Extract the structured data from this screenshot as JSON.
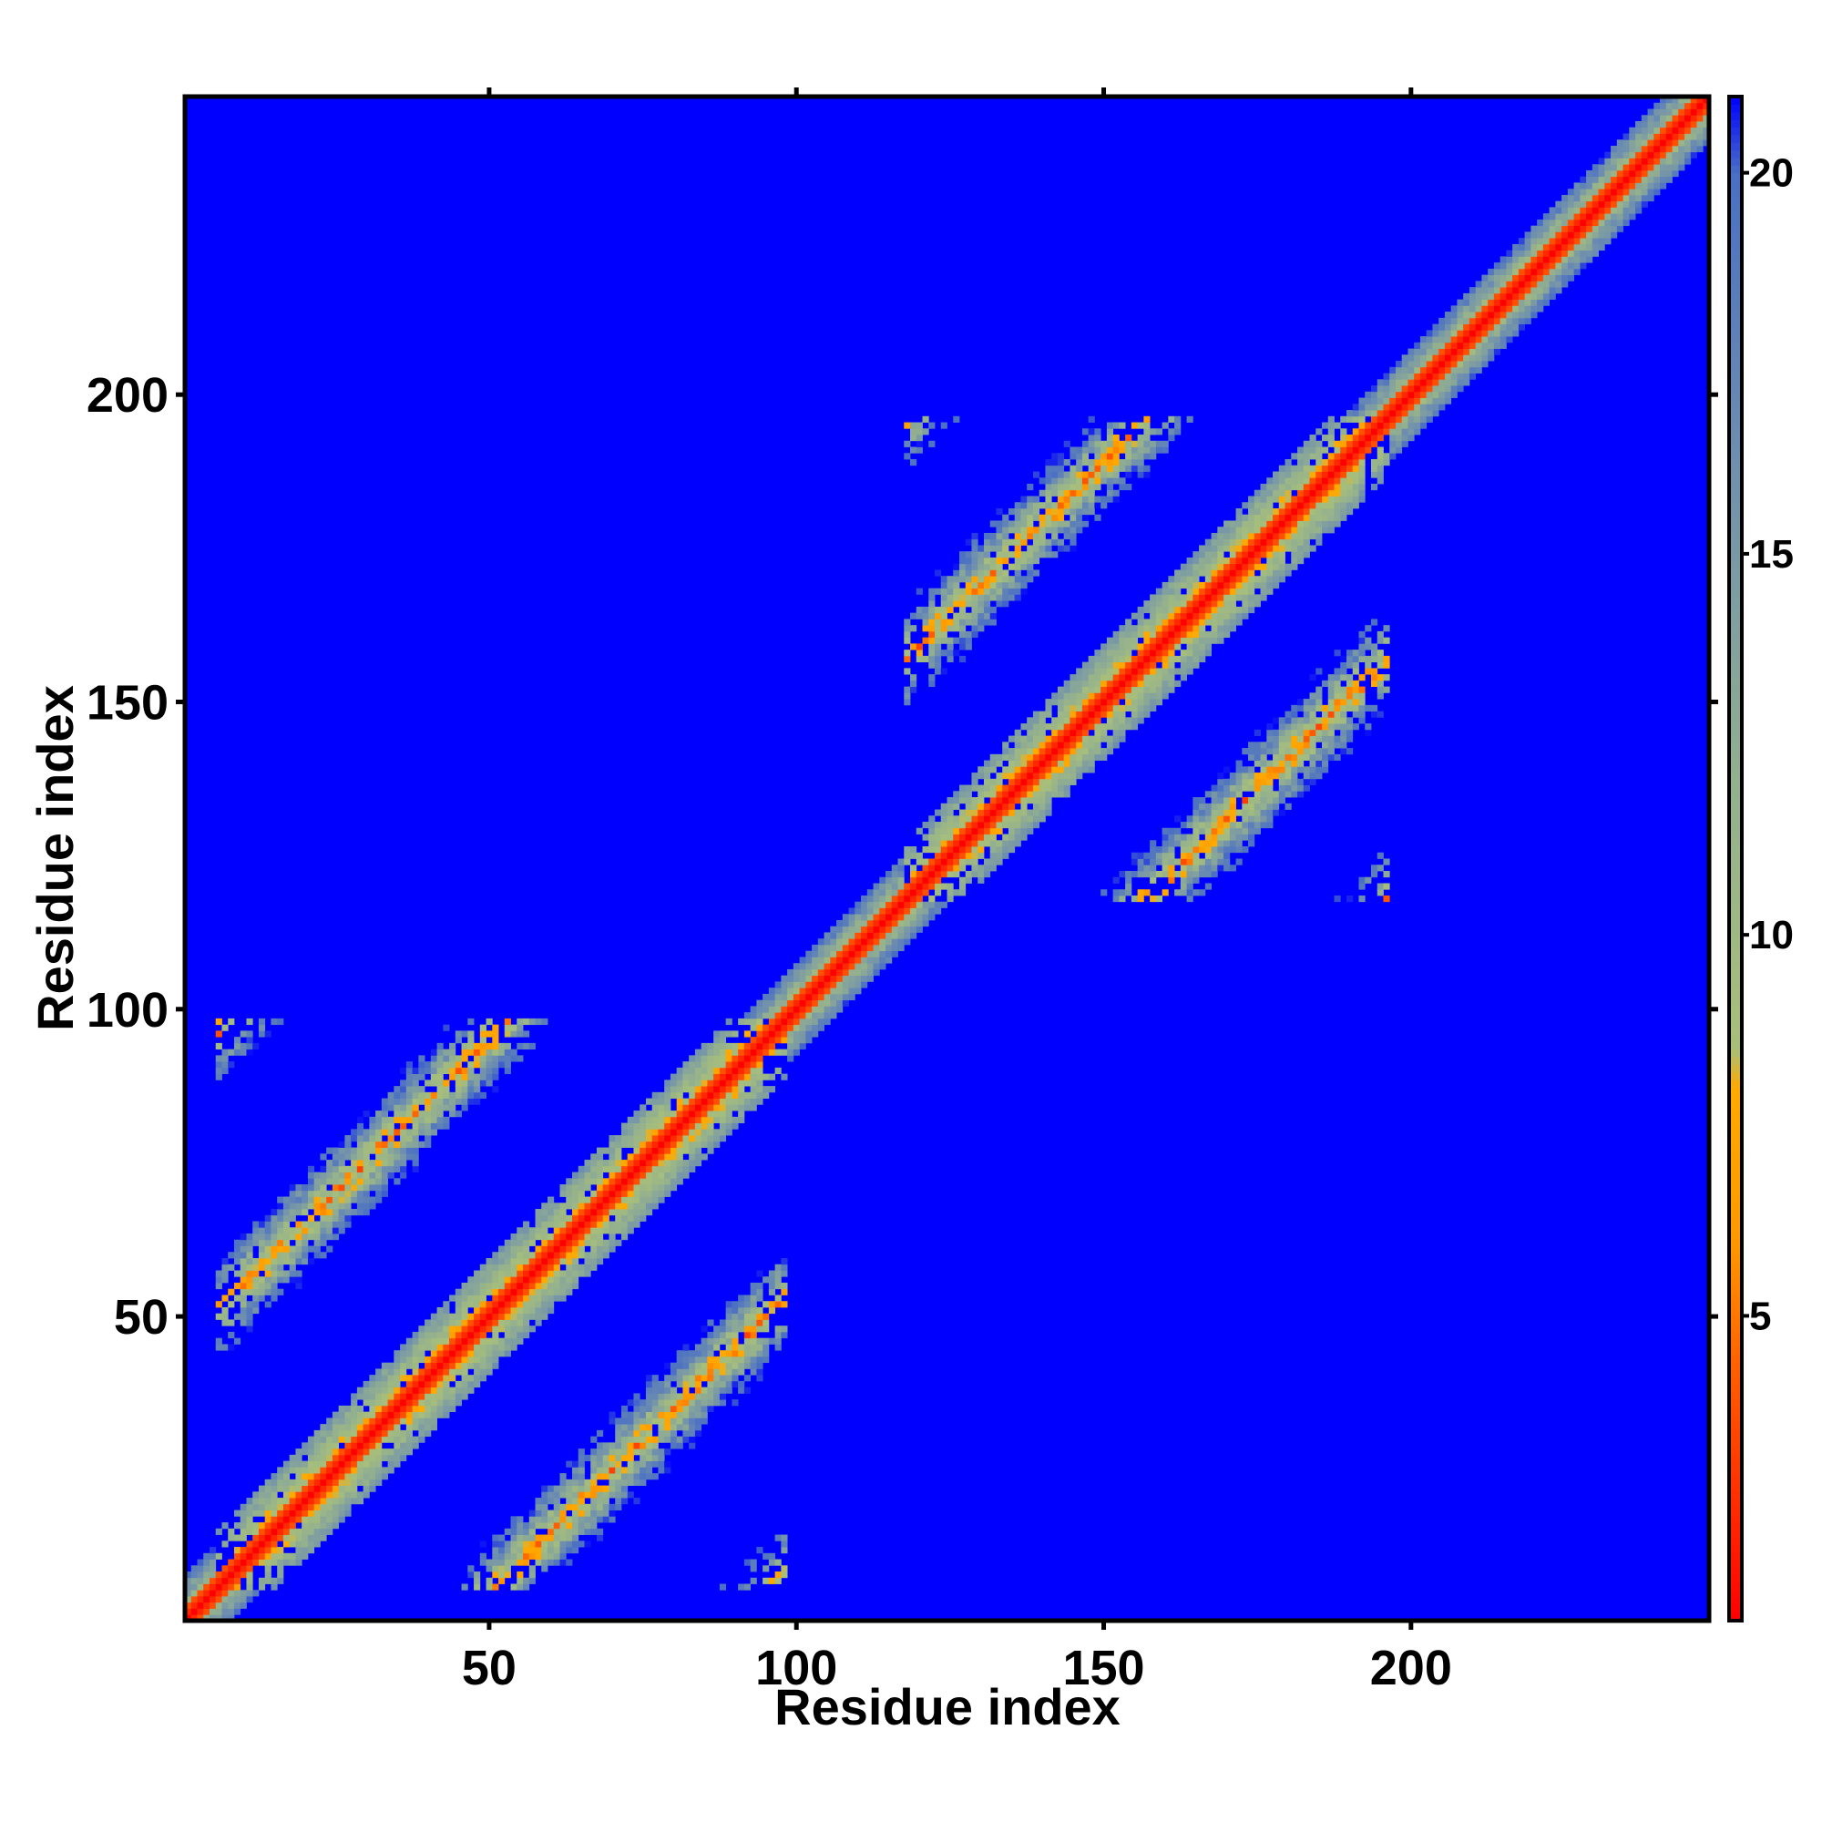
{
  "chart_data": {
    "type": "heatmap",
    "title": "",
    "xlabel": "Residue index",
    "ylabel": "Residue index",
    "n": 248,
    "xlim": [
      1,
      248
    ],
    "ylim": [
      1,
      248
    ],
    "x_ticks": [
      50,
      100,
      150,
      200
    ],
    "y_ticks": [
      50,
      100,
      150,
      200
    ],
    "colorbar": {
      "range": [
        1,
        21
      ],
      "ticks": [
        5,
        10,
        15,
        20
      ],
      "position": "right",
      "stops": [
        {
          "value": 1,
          "color": "#ff0000"
        },
        {
          "value": 4,
          "color": "#ff5500"
        },
        {
          "value": 6,
          "color": "#ff9900"
        },
        {
          "value": 8,
          "color": "#ffaa00"
        },
        {
          "value": 8.5,
          "color": "#a8bf7a"
        },
        {
          "value": 12,
          "color": "#93b08f"
        },
        {
          "value": 16,
          "color": "#7191ad"
        },
        {
          "value": 20,
          "color": "#4a6fc4"
        },
        {
          "value": 21,
          "color": "#0000ff"
        }
      ]
    },
    "blocks": [
      {
        "range": [
          6,
          98
        ],
        "center": 51,
        "radius": 45
      },
      {
        "range": [
          118,
          196
        ],
        "center": 156,
        "radius": 39
      }
    ],
    "background_value": 21,
    "diagonal_band_value": 1,
    "colors": {
      "background": "#0000ff",
      "frame": "#000000"
    }
  }
}
